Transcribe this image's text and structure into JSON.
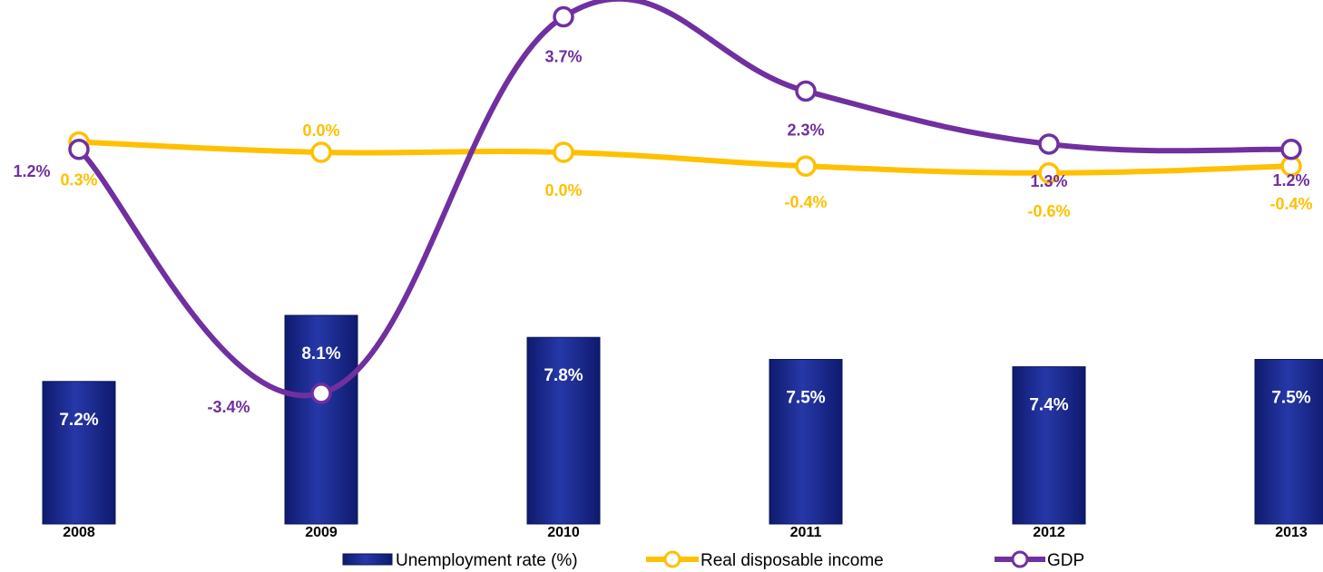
{
  "chart_data": {
    "type": "bar",
    "categories": [
      "2008",
      "2009",
      "2010",
      "2011",
      "2012",
      "2013"
    ],
    "series": [
      {
        "name": "Unemployment rate (%)",
        "type": "bar",
        "values": [
          7.2,
          8.1,
          7.8,
          7.5,
          7.4,
          7.5
        ],
        "labels": [
          "7.2%",
          "8.1%",
          "7.8%",
          "7.5%",
          "7.4%",
          "7.5%"
        ],
        "color": "#1a2a8c"
      },
      {
        "name": "Real disposable income",
        "type": "line",
        "values": [
          0.3,
          0.0,
          0.0,
          -0.4,
          -0.6,
          -0.4
        ],
        "labels": [
          "0.3%",
          "0.0%",
          "0.0%",
          "-0.4%",
          "-0.6%",
          "-0.4%"
        ],
        "color": "#ffc000"
      },
      {
        "name": "GDP",
        "type": "line",
        "values": [
          1.2,
          -3.4,
          3.7,
          2.3,
          1.3,
          1.2
        ],
        "labels": [
          "1.2%",
          "-3.4%",
          "3.7%",
          "2.3%",
          "1.3%",
          "1.2%"
        ],
        "color": "#7030a0"
      }
    ],
    "legend_position": "bottom",
    "grid": false
  }
}
